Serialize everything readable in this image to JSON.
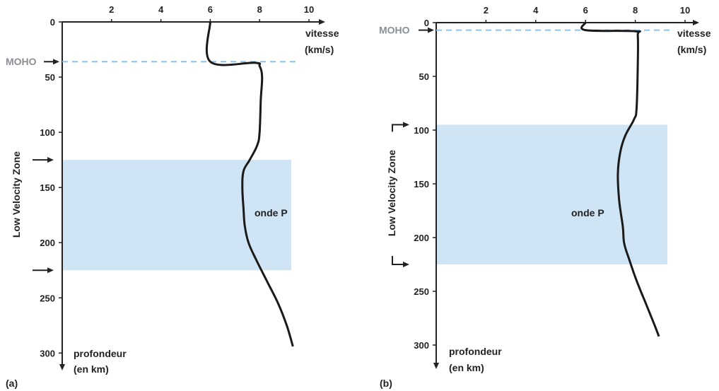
{
  "chart_data": [
    {
      "panel_label": "(a)",
      "type": "line",
      "x_axis": {
        "label_line1": "vitesse",
        "label_line2": "(km/s)",
        "ticks": [
          "2",
          "4",
          "6",
          "8",
          "10"
        ],
        "range": [
          0,
          10
        ]
      },
      "y_axis": {
        "label_line1": "profondeur",
        "label_line2": "(en km)",
        "ticks": [
          "0",
          "50",
          "100",
          "150",
          "200",
          "250",
          "300"
        ],
        "range": [
          0,
          300
        ],
        "inverted": true
      },
      "moho": {
        "label": "MOHO",
        "depth": 36
      },
      "lvz": {
        "label": "Low Velocity Zone",
        "top": 125,
        "bottom": 225
      },
      "series": [
        {
          "name": "onde P",
          "x": [
            6.0,
            6.0,
            7.8,
            8.0,
            8.1,
            8.05,
            8.0,
            7.9,
            7.6,
            7.35,
            7.3,
            7.35,
            7.4,
            7.55,
            7.85,
            8.3,
            8.75,
            9.1,
            9.35
          ],
          "y": [
            0,
            36,
            37,
            40,
            50,
            70,
            100,
            112,
            125,
            135,
            150,
            170,
            185,
            200,
            215,
            235,
            255,
            275,
            294
          ]
        }
      ]
    },
    {
      "panel_label": "(b)",
      "type": "line",
      "x_axis": {
        "label_line1": "vitesse",
        "label_line2": "(km/s)",
        "ticks": [
          "2",
          "4",
          "6",
          "8",
          "10"
        ],
        "range": [
          0,
          10
        ]
      },
      "y_axis": {
        "label_line1": "profondeur",
        "label_line2": "(en km)",
        "ticks": [
          "0",
          "50",
          "100",
          "150",
          "200",
          "250",
          "300"
        ],
        "range": [
          0,
          300
        ],
        "inverted": true
      },
      "moho": {
        "label": "MOHO",
        "depth": 7
      },
      "lvz": {
        "label": "Low Velocity Zone",
        "top": 95,
        "bottom": 225
      },
      "series": [
        {
          "name": "onde P",
          "x": [
            6.0,
            6.0,
            8.0,
            8.1,
            8.1,
            8.05,
            7.95,
            7.6,
            7.4,
            7.3,
            7.35,
            7.5,
            7.55,
            7.75,
            8.05,
            8.4,
            8.75,
            8.95
          ],
          "y": [
            0,
            7,
            8,
            12,
            40,
            80,
            90,
            105,
            120,
            140,
            165,
            190,
            205,
            220,
            240,
            260,
            280,
            292
          ]
        }
      ]
    }
  ]
}
